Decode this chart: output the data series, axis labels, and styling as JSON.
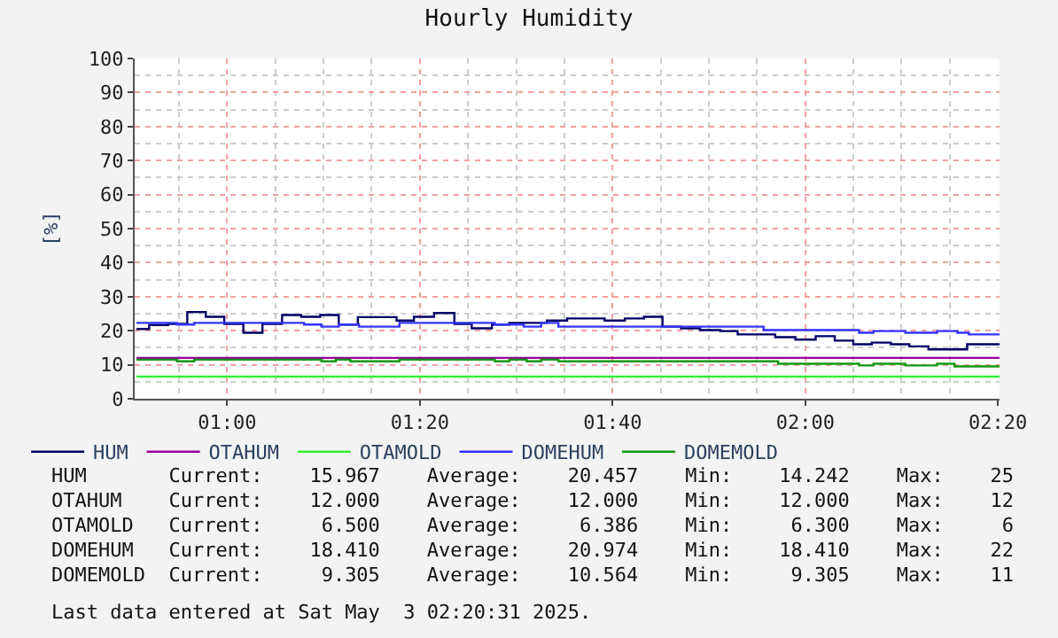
{
  "chart_data": {
    "type": "step",
    "title": "Hourly Humidity",
    "ylabel": "[%]",
    "xlim": [
      0.84,
      2.336
    ],
    "ylim": [
      0,
      100
    ],
    "xticks": [
      {
        "value": 1.0,
        "label": "01:00"
      },
      {
        "value": 1.3333,
        "label": "01:20"
      },
      {
        "value": 1.6667,
        "label": "01:40"
      },
      {
        "value": 2.0,
        "label": "02:00"
      },
      {
        "value": 2.3333,
        "label": "02:20"
      }
    ],
    "yticks": [
      0,
      10,
      20,
      30,
      40,
      50,
      60,
      70,
      80,
      90,
      100
    ],
    "grid": true,
    "legend": "bottom",
    "line_style": "solid",
    "marker": "none",
    "series": [
      {
        "name": "HUM",
        "color": "#000066",
        "x": [
          0.843,
          0.865,
          0.898,
          0.931,
          0.963,
          0.995,
          1.028,
          1.061,
          1.095,
          1.128,
          1.161,
          1.193,
          1.226,
          1.293,
          1.323,
          1.358,
          1.393,
          1.423,
          1.458,
          1.488,
          1.553,
          1.588,
          1.653,
          1.688,
          1.721,
          1.753,
          1.785,
          1.818,
          1.853,
          1.883,
          1.948,
          1.983,
          2.018,
          2.051,
          2.083,
          2.115,
          2.148,
          2.18,
          2.213,
          2.28,
          2.313,
          2.336
        ],
        "values": [
          20.5,
          21.7,
          22,
          25.5,
          24.1,
          22,
          19.4,
          22,
          24.6,
          24.1,
          24.6,
          21.8,
          24,
          23,
          24.1,
          25.2,
          22,
          20.7,
          21.8,
          22.3,
          23,
          23.6,
          23,
          23.6,
          24.1,
          21.2,
          20.7,
          20.2,
          19.9,
          18.9,
          18.1,
          17.4,
          18.4,
          17.1,
          16,
          16.5,
          16,
          15.4,
          14.5,
          16,
          16,
          16
        ]
      },
      {
        "name": "OTAHUM",
        "color": "#990099",
        "x": [
          0.843,
          2.336
        ],
        "values": [
          12,
          12
        ]
      },
      {
        "name": "OTAMOLD",
        "color": "#33ee33",
        "x": [
          0.843,
          2.336
        ],
        "values": [
          6.5,
          6.5
        ]
      },
      {
        "name": "DOMEHUM",
        "color": "#3333ff",
        "x": [
          0.843,
          0.913,
          0.943,
          1.133,
          1.163,
          1.193,
          1.228,
          1.298,
          1.463,
          1.513,
          1.543,
          1.573,
          1.928,
          2.093,
          2.118,
          2.173,
          2.228,
          2.263,
          2.283,
          2.336
        ],
        "values": [
          22.3,
          21.8,
          22.3,
          21.8,
          21.2,
          21.8,
          21.2,
          22.3,
          21.8,
          21.2,
          22.3,
          21.2,
          20.2,
          19.4,
          19.9,
          19.4,
          19.9,
          19.4,
          18.9,
          18.9
        ]
      },
      {
        "name": "DOMEMOLD",
        "color": "#119911",
        "x": [
          0.843,
          0.913,
          0.943,
          1.163,
          1.188,
          1.213,
          1.298,
          1.463,
          1.488,
          1.518,
          1.543,
          1.573,
          1.953,
          2.093,
          2.118,
          2.173,
          2.228,
          2.258,
          2.336
        ],
        "values": [
          11.5,
          11,
          11.5,
          11,
          11.5,
          11,
          11.5,
          11,
          11.5,
          11,
          11.5,
          11,
          10.3,
          9.8,
          10.3,
          9.8,
          10.3,
          9.5,
          9.5
        ]
      }
    ],
    "annotations": [
      "HUM       Current:    15.967    Average:    20.457    Min:    14.242    Max:    25",
      "OTAHUM    Current:    12.000    Average:    12.000    Min:    12.000    Max:    12",
      "OTAMOLD   Current:     6.500    Average:     6.386    Min:     6.300    Max:     6",
      "DOMEHUM   Current:    18.410    Average:    20.974    Min:    18.410    Max:    22",
      "DOMEMOLD  Current:     9.305    Average:    10.564    Min:     9.305    Max:    11",
      "Last data entered at Sat May  3 02:20:31 2025."
    ]
  }
}
